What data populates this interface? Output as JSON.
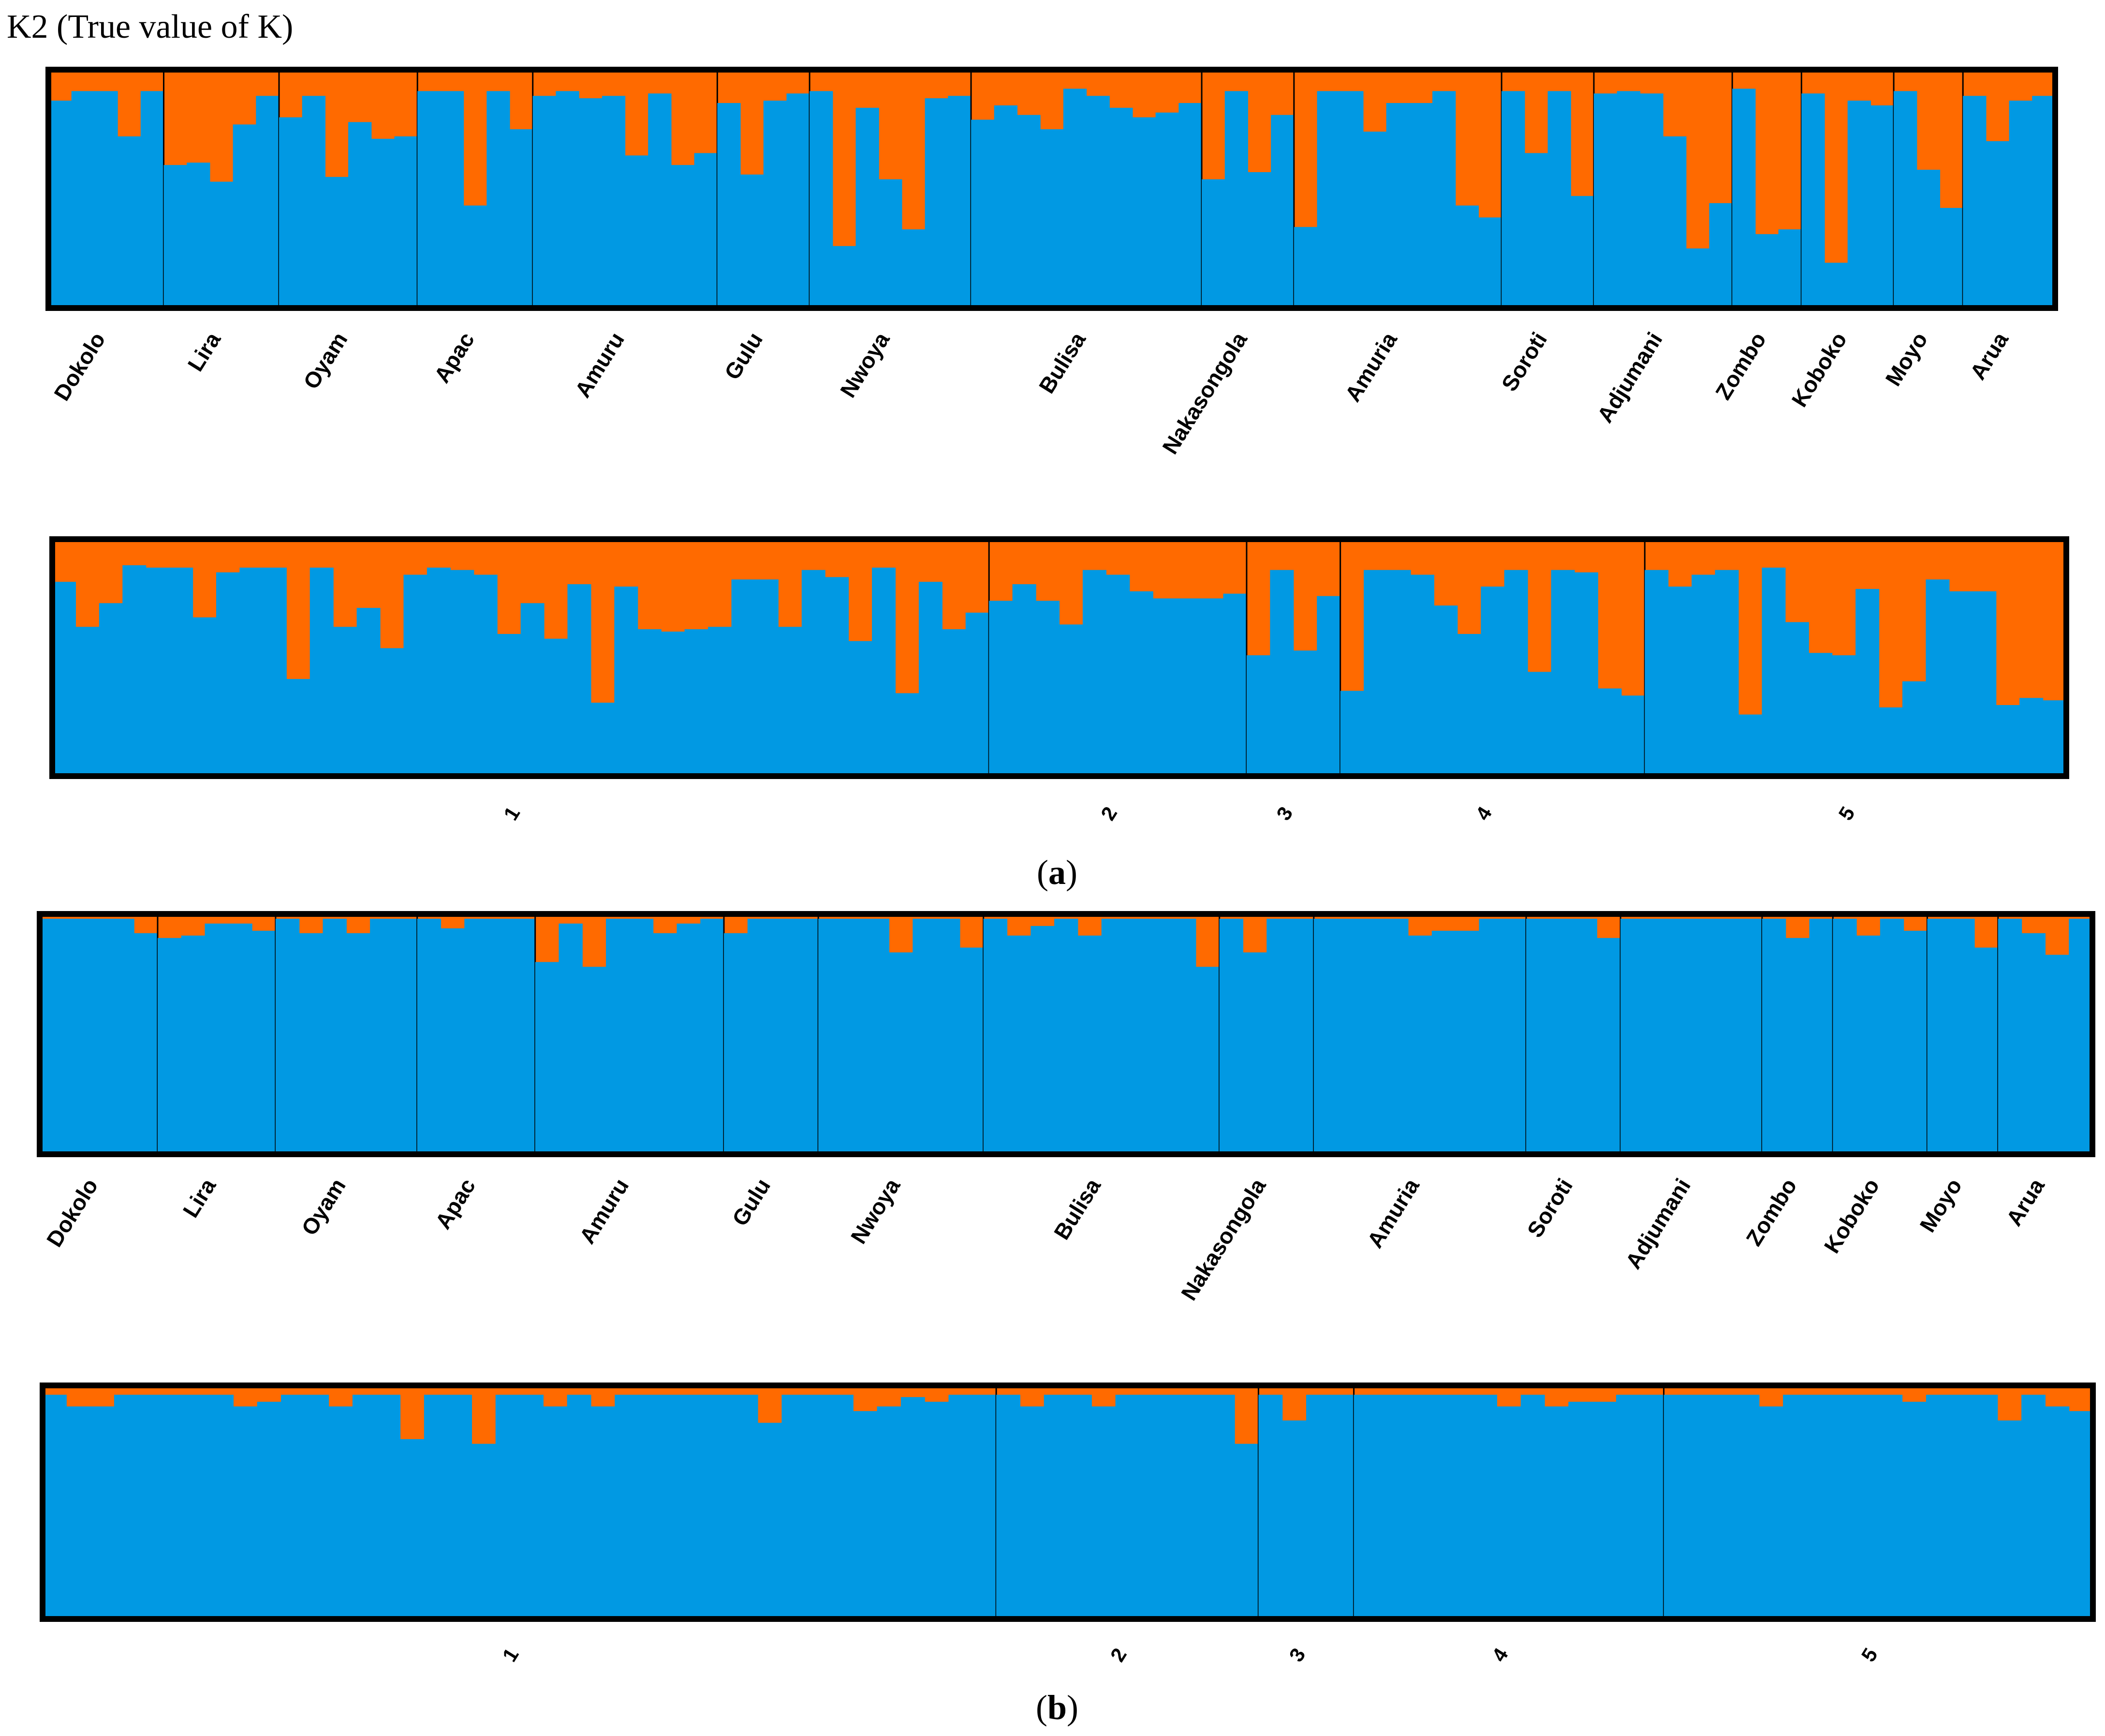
{
  "figure": {
    "title": "K2 (True value of K)",
    "caption_a_letter": "a",
    "caption_b_letter": "b"
  },
  "colors": {
    "cluster1": "#0199e3",
    "cluster2": "#ff6a00",
    "frame": "#000000"
  },
  "chart_data": [
    {
      "type": "bar",
      "stacked": true,
      "panel": "a",
      "grouping": "district",
      "ylim": [
        0,
        1
      ],
      "series": [
        {
          "values_key": "q"
        }
      ],
      "categories": [
        "Dokolo",
        "Lira",
        "Oyam",
        "Apac",
        "Amuru",
        "Gulu",
        "Nwoya",
        "Bulisa",
        "Nakasongola",
        "Amuria",
        "Soroti",
        "Adjumani",
        "Zombo",
        "Koboko",
        "Moyo",
        "Arua"
      ],
      "q": [
        [
          0.87,
          0.91,
          0.91,
          0.72,
          0.91
        ],
        [
          0.6,
          0.61,
          0.53,
          0.77,
          0.89
        ],
        [
          0.8,
          0.89,
          0.55,
          0.78,
          0.71,
          0.72
        ],
        [
          0.91,
          0.91,
          0.43,
          0.91,
          0.75
        ],
        [
          0.89,
          0.91,
          0.88,
          0.89,
          0.64,
          0.9,
          0.6,
          0.65
        ],
        [
          0.86,
          0.56,
          0.87,
          0.9
        ],
        [
          0.91,
          0.26,
          0.84,
          0.54,
          0.33,
          0.88,
          0.89
        ],
        [
          0.79,
          0.85,
          0.81,
          0.75,
          0.92,
          0.89,
          0.84,
          0.8,
          0.82,
          0.86
        ],
        [
          0.54,
          0.91,
          0.57,
          0.81
        ],
        [
          0.34,
          0.91,
          0.91,
          0.74,
          0.86,
          0.86,
          0.91,
          0.43,
          0.38
        ],
        [
          0.91,
          0.65,
          0.91,
          0.47
        ],
        [
          0.9,
          0.91,
          0.9,
          0.72,
          0.25,
          0.44
        ],
        [
          0.92,
          0.31,
          0.33
        ],
        [
          0.9,
          0.19,
          0.87,
          0.85
        ],
        [
          0.91,
          0.58,
          0.42
        ],
        [
          0.89,
          0.7,
          0.87,
          0.89
        ]
      ]
    },
    {
      "type": "bar",
      "stacked": true,
      "panel": "a",
      "grouping": "cluster",
      "ylim": [
        0,
        1
      ],
      "categories": [
        "1",
        "2",
        "3",
        "4",
        "5"
      ],
      "q": [
        [
          0.82,
          0.63,
          0.73,
          0.89,
          0.88,
          0.88,
          0.67,
          0.86,
          0.88,
          0.88,
          0.41,
          0.88,
          0.63,
          0.71,
          0.54,
          0.85,
          0.88,
          0.87,
          0.85,
          0.6,
          0.73,
          0.58,
          0.81,
          0.31,
          0.8,
          0.62,
          0.61,
          0.62,
          0.63,
          0.83,
          0.83,
          0.63,
          0.87,
          0.84,
          0.57,
          0.88,
          0.35,
          0.82,
          0.62,
          0.69
        ],
        [
          0.74,
          0.81,
          0.74,
          0.64,
          0.87,
          0.85,
          0.78,
          0.75,
          0.75,
          0.75,
          0.77
        ],
        [
          0.51,
          0.87,
          0.53,
          0.76
        ],
        [
          0.36,
          0.87,
          0.87,
          0.85,
          0.72,
          0.6,
          0.8,
          0.87,
          0.44,
          0.87,
          0.86,
          0.37,
          0.34
        ],
        [
          0.87,
          0.8,
          0.85,
          0.87,
          0.26,
          0.88,
          0.65,
          0.52,
          0.51,
          0.79,
          0.29,
          0.4,
          0.83,
          0.78,
          0.78,
          0.3,
          0.33,
          0.32
        ]
      ]
    },
    {
      "type": "bar",
      "stacked": true,
      "panel": "b",
      "grouping": "district",
      "ylim": [
        0,
        1
      ],
      "categories": [
        "Dokolo",
        "Lira",
        "Oyam",
        "Apac",
        "Amuru",
        "Gulu",
        "Nwoya",
        "Bulisa",
        "Nakasongola",
        "Amuria",
        "Soroti",
        "Adjumani",
        "Zombo",
        "Koboko",
        "Moyo",
        "Arua"
      ],
      "q": [
        [
          0.98,
          0.98,
          0.98,
          0.98,
          0.92
        ],
        [
          0.9,
          0.91,
          0.96,
          0.96,
          0.93
        ],
        [
          0.98,
          0.92,
          0.98,
          0.92,
          0.98,
          0.98
        ],
        [
          0.98,
          0.94,
          0.98,
          0.98,
          0.98
        ],
        [
          0.8,
          0.96,
          0.78,
          0.98,
          0.98,
          0.92,
          0.96,
          0.98
        ],
        [
          0.92,
          0.98,
          0.98,
          0.98
        ],
        [
          0.98,
          0.98,
          0.98,
          0.84,
          0.98,
          0.98,
          0.86
        ],
        [
          0.98,
          0.91,
          0.95,
          0.98,
          0.91,
          0.98,
          0.98,
          0.98,
          0.98,
          0.78
        ],
        [
          0.98,
          0.84,
          0.98,
          0.98
        ],
        [
          0.98,
          0.98,
          0.98,
          0.98,
          0.91,
          0.93,
          0.93,
          0.98,
          0.98
        ],
        [
          0.98,
          0.98,
          0.98,
          0.9
        ],
        [
          0.98,
          0.98,
          0.98,
          0.98,
          0.98,
          0.98
        ],
        [
          0.98,
          0.9,
          0.98
        ],
        [
          0.98,
          0.91,
          0.98,
          0.93
        ],
        [
          0.98,
          0.98,
          0.86
        ],
        [
          0.98,
          0.92,
          0.83,
          0.98
        ]
      ]
    },
    {
      "type": "bar",
      "stacked": true,
      "panel": "b",
      "grouping": "cluster",
      "ylim": [
        0,
        1
      ],
      "categories": [
        "1",
        "2",
        "3",
        "4",
        "5"
      ],
      "q": [
        [
          0.96,
          0.91,
          0.91,
          0.96,
          0.96,
          0.96,
          0.96,
          0.96,
          0.91,
          0.93,
          0.96,
          0.96,
          0.91,
          0.96,
          0.96,
          0.77,
          0.96,
          0.96,
          0.75,
          0.96,
          0.96,
          0.91,
          0.96,
          0.91,
          0.96,
          0.96,
          0.96,
          0.96,
          0.96,
          0.96,
          0.84,
          0.96,
          0.96,
          0.96,
          0.89,
          0.91,
          0.95,
          0.93,
          0.96,
          0.96
        ],
        [
          0.96,
          0.91,
          0.96,
          0.96,
          0.91,
          0.96,
          0.96,
          0.96,
          0.96,
          0.96,
          0.75
        ],
        [
          0.96,
          0.85,
          0.96,
          0.96
        ],
        [
          0.96,
          0.96,
          0.96,
          0.96,
          0.96,
          0.96,
          0.91,
          0.96,
          0.91,
          0.93,
          0.93,
          0.96,
          0.96
        ],
        [
          0.96,
          0.96,
          0.96,
          0.96,
          0.91,
          0.96,
          0.96,
          0.96,
          0.96,
          0.96,
          0.93,
          0.96,
          0.96,
          0.96,
          0.85,
          0.96,
          0.91,
          0.89
        ]
      ]
    }
  ]
}
